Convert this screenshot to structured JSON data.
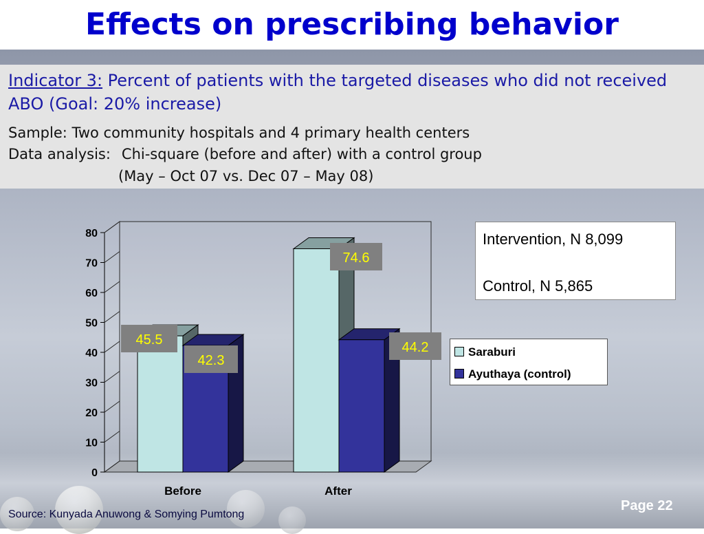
{
  "title": "Effects on prescribing behavior",
  "indicator": {
    "label": "Indicator 3:",
    "text": " Percent of patients with the targeted diseases who did not received ABO (Goal: 20% increase)"
  },
  "sample": "Sample: Two community hospitals and 4 primary health centers",
  "analysis": {
    "label": "Data analysis:",
    "text": "Chi-square (before and after) with a control group"
  },
  "period": "(May – Oct 07 vs. Dec 07 – May 08)",
  "notes": {
    "intervention": "Intervention, N 8,099",
    "control": "Control,  N 5,865"
  },
  "source": "Source: Kunyada Anuwong & Somying Pumtong",
  "page": "Page 22",
  "chart_data": {
    "type": "bar",
    "categories": [
      "Before",
      "After"
    ],
    "series": [
      {
        "name": "Saraburi",
        "values": [
          45.5,
          74.6
        ],
        "color": "#bfe5e4"
      },
      {
        "name": "Ayuthaya (control)",
        "values": [
          42.3,
          44.2
        ],
        "color": "#33339b"
      }
    ],
    "data_labels": [
      "45.5",
      "74.6",
      "42.3",
      "44.2"
    ],
    "yticks": [
      0,
      10,
      20,
      30,
      40,
      50,
      60,
      70,
      80
    ],
    "ylim": [
      0,
      80
    ],
    "legend_position": "right",
    "grid": false,
    "label_box_color": "#808080",
    "label_text_color": "#ffff00"
  }
}
